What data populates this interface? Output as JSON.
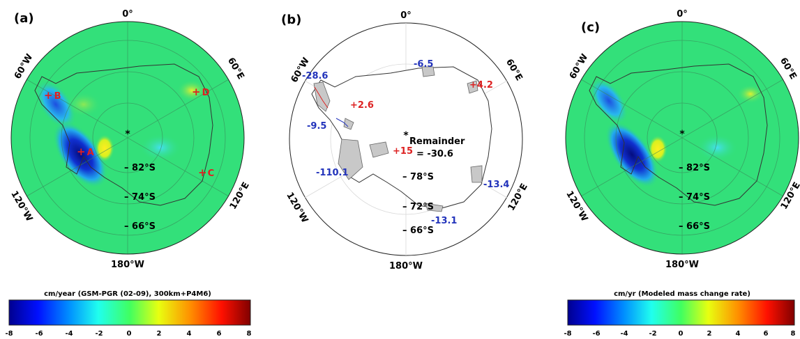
{
  "panels": [
    {
      "id": "a",
      "label": "(a)",
      "lon_labels": {
        "top": "0°",
        "left": "60°W",
        "right": "60°E",
        "lower_left": "120°W",
        "lower_right": "120°E",
        "bottom": "180°W"
      },
      "lat_labels": [
        "82°S",
        "74°S",
        "66°S"
      ],
      "points": [
        {
          "label": "A"
        },
        {
          "label": "B"
        },
        {
          "label": "C"
        },
        {
          "label": "D"
        }
      ],
      "colorbar": {
        "title": "cm/year (GSM-PGR (02-09), 300km+P4M6)",
        "ticks": [
          "-8",
          "-6",
          "-4",
          "-2",
          "0",
          "2",
          "4",
          "6",
          "8"
        ]
      }
    },
    {
      "id": "b",
      "label": "(b)",
      "lon_labels": {
        "top": "0°",
        "left": "60°W",
        "right": "60°E",
        "lower_left": "120°W",
        "lower_right": "120°E",
        "bottom": "180°W"
      },
      "lat_labels": [
        "78°S",
        "72°S",
        "66°S"
      ],
      "region_values": [
        {
          "text": "-28.6",
          "color": "#2233bb"
        },
        {
          "text": "-6.5",
          "color": "#2233bb"
        },
        {
          "text": "+4.2",
          "color": "#dd2222"
        },
        {
          "text": "+2.6",
          "color": "#dd2222"
        },
        {
          "text": "-9.5",
          "color": "#2233bb"
        },
        {
          "text": "+15",
          "color": "#dd2222"
        },
        {
          "text": "-110.1",
          "color": "#2233bb"
        },
        {
          "text": "-13.4",
          "color": "#2233bb"
        },
        {
          "text": "-13.1",
          "color": "#2233bb"
        }
      ],
      "remainder_label": "Remainder",
      "remainder_value": "= -30.6"
    },
    {
      "id": "c",
      "label": "(c)",
      "lon_labels": {
        "top": "0°",
        "left": "60°W",
        "right": "60°E",
        "lower_left": "120°W",
        "lower_right": "120°E",
        "bottom": "180°W"
      },
      "lat_labels": [
        "82°S",
        "74°S",
        "66°S"
      ],
      "colorbar": {
        "title": "cm/yr (Modeled mass change rate)",
        "ticks": [
          "-8",
          "-6",
          "-4",
          "-2",
          "0",
          "2",
          "4",
          "6",
          "8"
        ]
      }
    }
  ],
  "colors": {
    "map_bg": "#2fe07a",
    "deep_blue": "#0a1aa0",
    "cyan": "#33ddee",
    "yellow": "#f0f020",
    "red_marker": "#e02020",
    "outline": "#333333"
  }
}
